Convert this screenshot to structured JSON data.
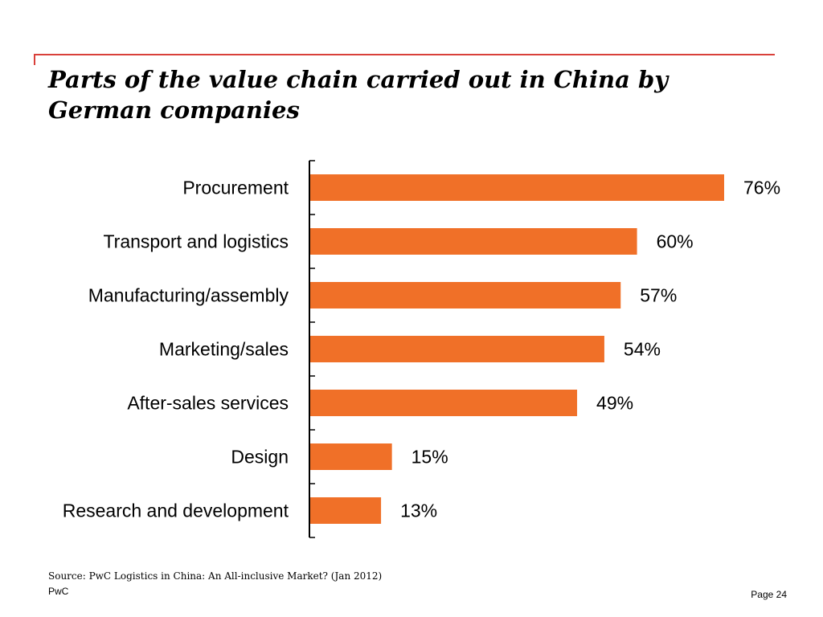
{
  "slide": {
    "title": "Parts of the value chain carried out in China by German companies",
    "source": "Source: PwC  Logistics in China: An All-inclusive Market? (Jan 2012)",
    "brand": "PwC",
    "page_number": "Page 24",
    "accent_color": "#d9403a"
  },
  "chart_data": {
    "type": "bar",
    "orientation": "horizontal",
    "title": "",
    "xlabel": "",
    "ylabel": "",
    "categories": [
      "Procurement",
      "Transport and logistics",
      "Manufacturing/assembly",
      "Marketing/sales",
      "After-sales services",
      "Design",
      "Research and development"
    ],
    "values": [
      76,
      60,
      57,
      54,
      49,
      15,
      13
    ],
    "value_labels": [
      "76%",
      "60%",
      "57%",
      "54%",
      "49%",
      "15%",
      "13%"
    ],
    "unit": "%",
    "xlim": [
      0,
      76
    ],
    "grid": false,
    "legend": "none",
    "bar_color": "#f07028"
  }
}
